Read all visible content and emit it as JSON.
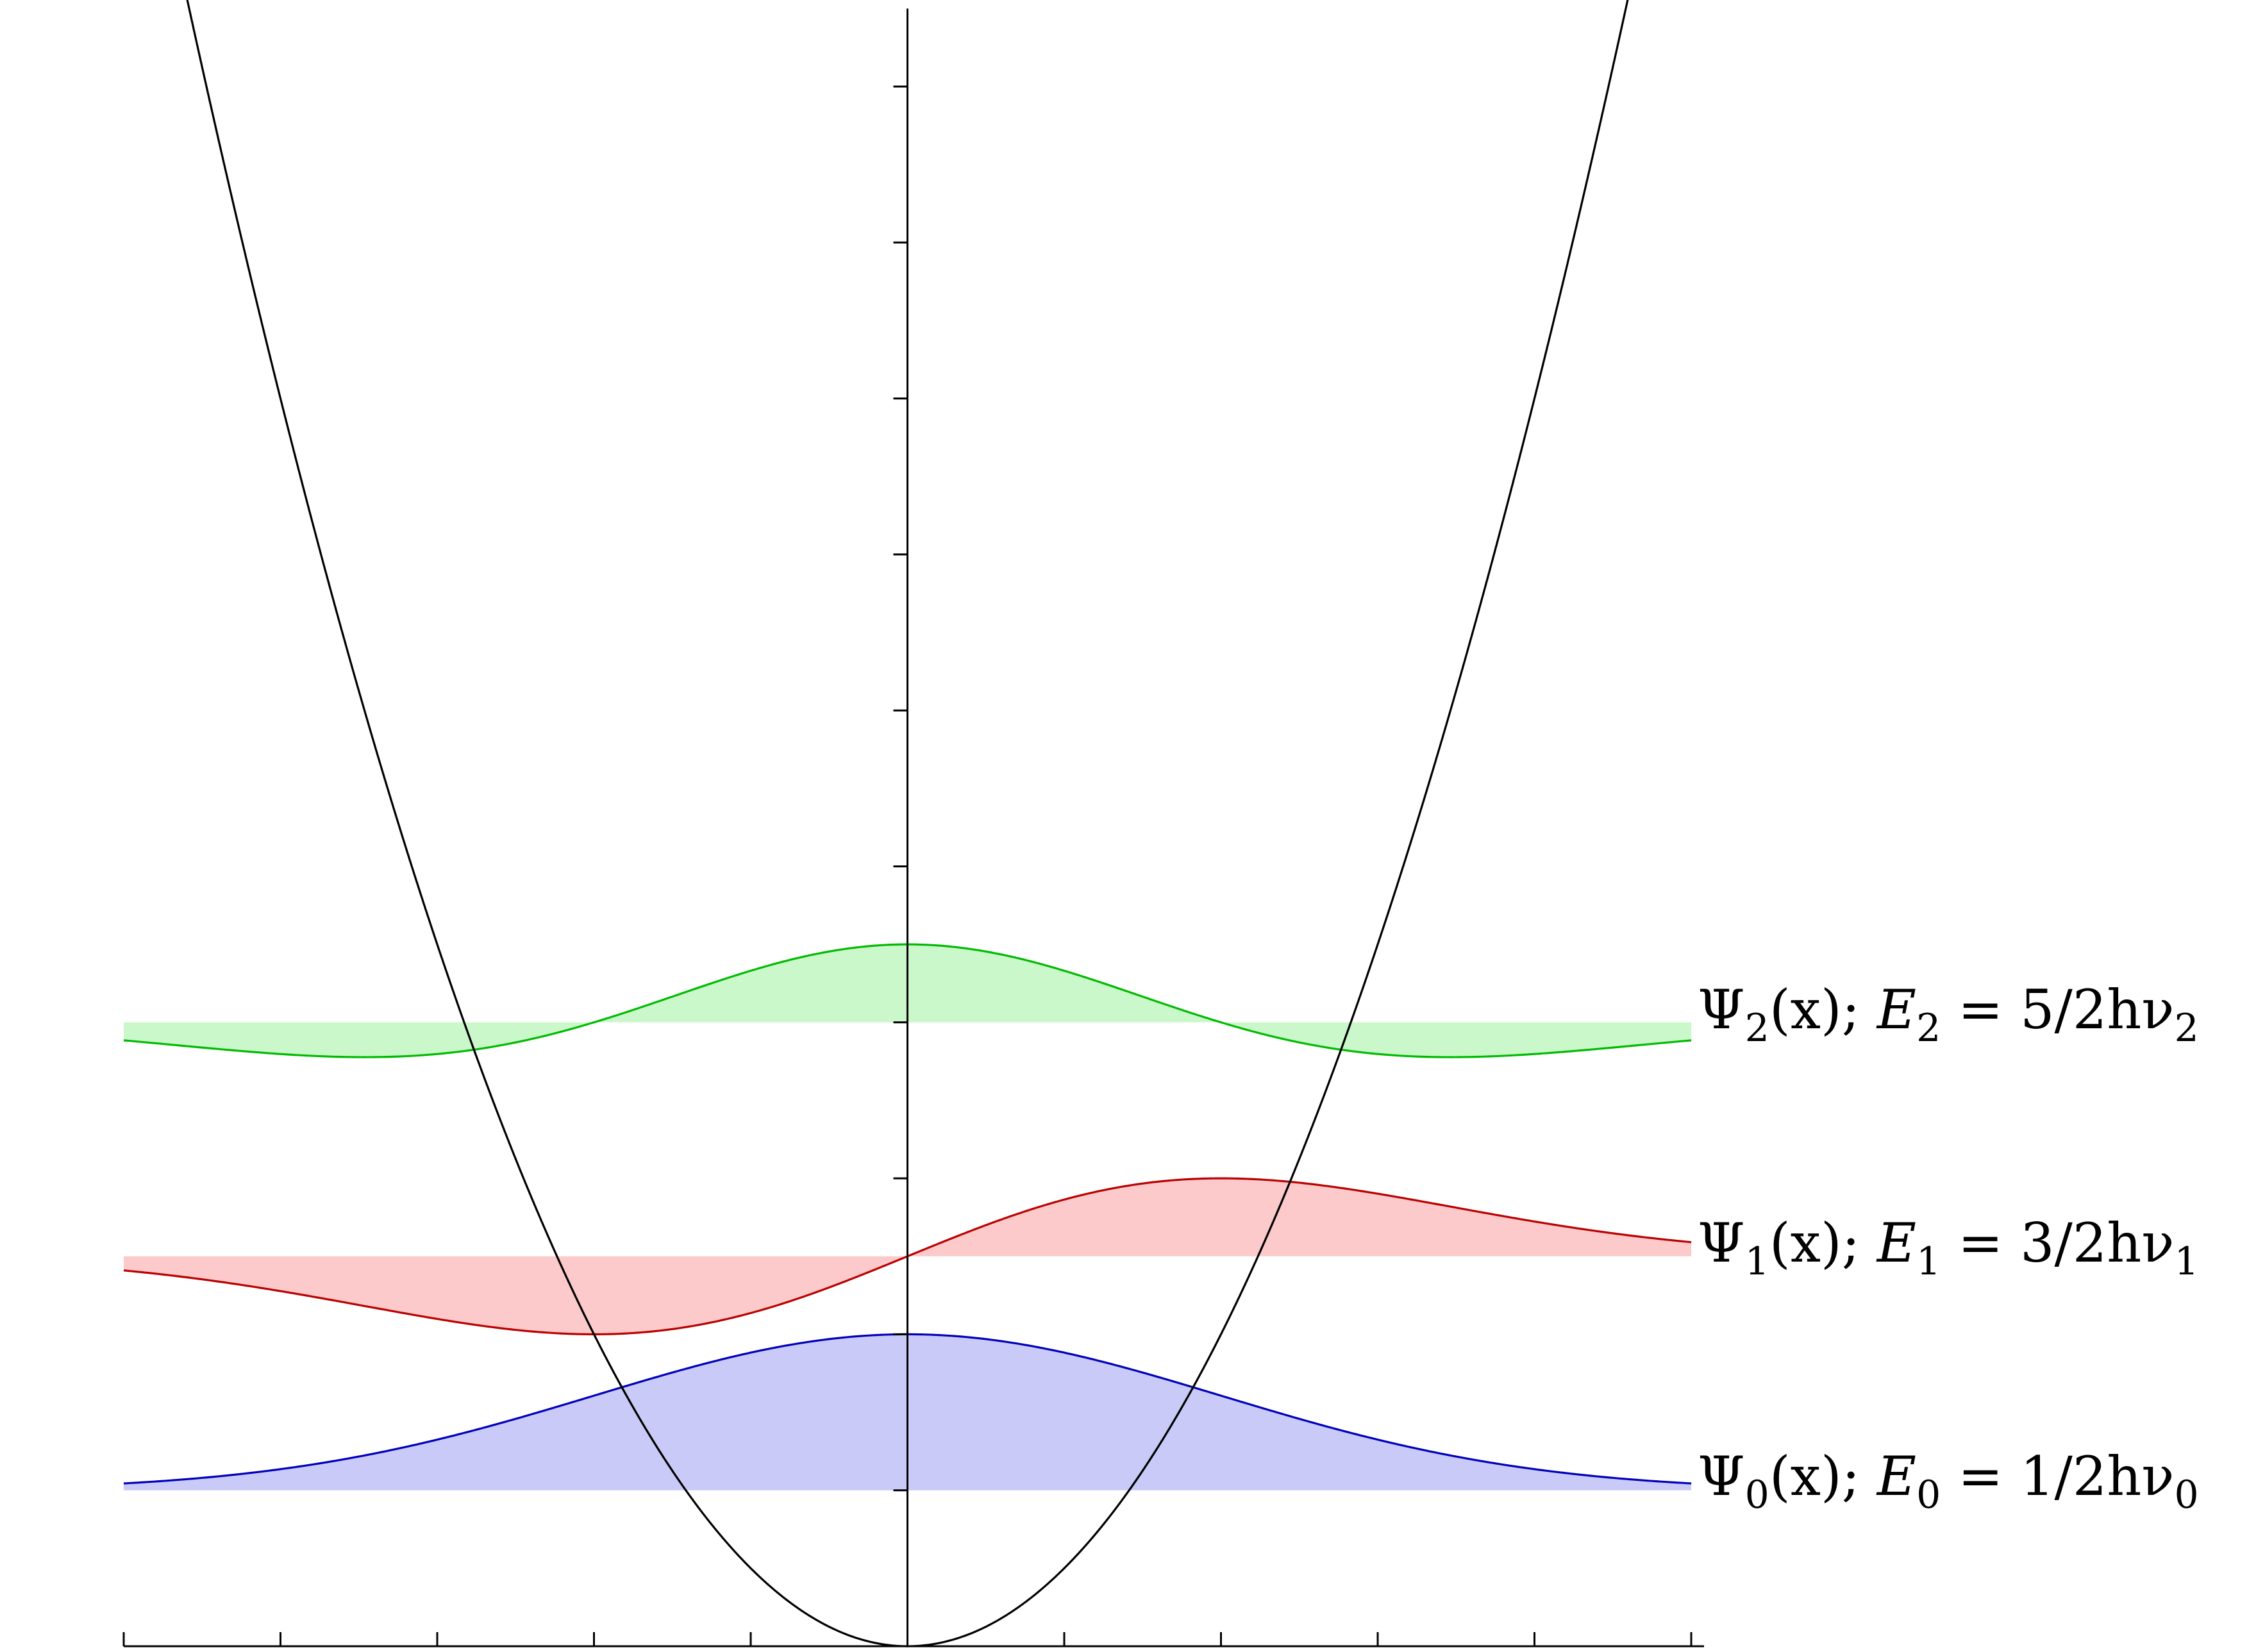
{
  "chart_data": {
    "type": "line",
    "title": "",
    "xlabel": "",
    "ylabel": "",
    "xlim": [
      -5,
      5
    ],
    "ylim": [
      0,
      10.5
    ],
    "x_ticks": [
      -5,
      -4,
      -3,
      -2,
      -1,
      0,
      1,
      2,
      3,
      4,
      5
    ],
    "y_ticks": [
      1,
      2,
      3,
      4,
      5,
      6,
      7,
      8,
      9,
      10
    ],
    "tick_labels_shown": false,
    "grid": false,
    "legend": "none",
    "potential": {
      "formula": "V(x) = x^2 / 2",
      "x_range": [
        -5,
        4.8
      ],
      "color": "#000000"
    },
    "series": [
      {
        "n": 0,
        "baseline_energy": 1.0,
        "peak_displacement": 1.0,
        "stroke": "#0000bb",
        "fill": "#cacaf8",
        "label": {
          "psi": "Ψ",
          "psi_sub": "0",
          "arg": "(x); ",
          "e": "E",
          "e_sub": "0",
          "rhs": " = 1/2hν",
          "nu_sub": "0"
        }
      },
      {
        "n": 1,
        "baseline_energy": 2.5,
        "peak_displacement": 0.5,
        "stroke": "#bb0000",
        "fill": "#fccaca",
        "label": {
          "psi": "Ψ",
          "psi_sub": "1",
          "arg": "(x); ",
          "e": "E",
          "e_sub": "1",
          "rhs": " = 3/2hν",
          "nu_sub": "1"
        }
      },
      {
        "n": 2,
        "baseline_energy": 4.0,
        "peak_displacement": 0.5,
        "stroke": "#00bb00",
        "fill": "#caf8ca",
        "label": {
          "psi": "Ψ",
          "psi_sub": "2",
          "arg": "(x); ",
          "e": "E",
          "e_sub": "2",
          "rhs": " = 5/2hν",
          "nu_sub": "2"
        }
      }
    ]
  }
}
